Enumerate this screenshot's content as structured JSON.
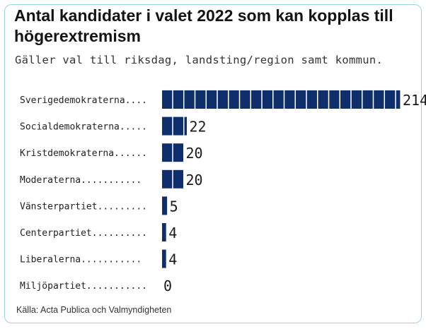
{
  "title": "Antal kandidater i valet 2022 som kan kopplas till högerextremism",
  "subtitle": "Gäller val till riksdag, landsting/region samt kommun.",
  "source": "Källa: Acta Publica och Valmyndigheten",
  "colors": {
    "bar": "#0e2f6b",
    "text": "#141414",
    "frame": "#9bd3e6"
  },
  "chart_data": {
    "type": "bar",
    "orientation": "horizontal",
    "unit_description": "each block = 10 candidates",
    "categories": [
      "Sverigedemokraterna....",
      "Socialdemokraterna.....",
      "Kristdemokraterna......",
      "Moderaterna...........",
      "Vänsterpartiet.........",
      "Centerpartiet..........",
      "Liberalerna...........",
      "Miljöpartiet..........."
    ],
    "values": [
      214,
      22,
      20,
      20,
      5,
      4,
      4,
      0
    ],
    "value_labels": [
      "214",
      "22",
      "20",
      "20",
      "5",
      "4",
      "4",
      "0"
    ],
    "title": "Antal kandidater i valet 2022 som kan kopplas till högerextremism",
    "xlabel": "",
    "ylabel": "",
    "grid": false,
    "legend": "none"
  }
}
